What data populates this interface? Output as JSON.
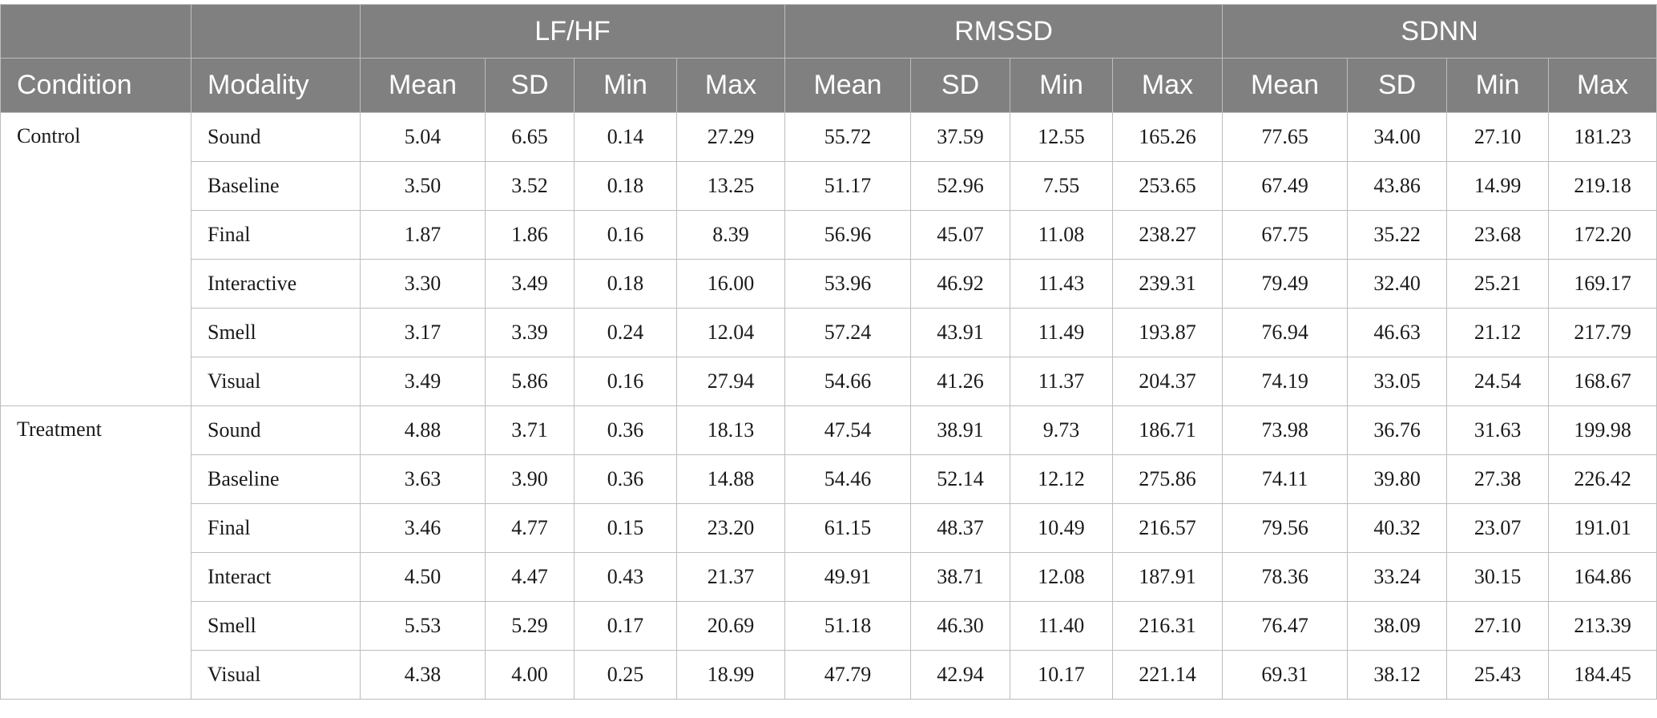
{
  "table": {
    "groups": [
      {
        "label": ""
      },
      {
        "label": ""
      },
      {
        "label": "LF/HF"
      },
      {
        "label": "RMSSD"
      },
      {
        "label": "SDNN"
      }
    ],
    "columns": [
      "Condition",
      "Modality",
      "Mean",
      "SD",
      "Min",
      "Max",
      "Mean",
      "SD",
      "Min",
      "Max",
      "Mean",
      "SD",
      "Min",
      "Max"
    ],
    "conditions": [
      {
        "name": "Control",
        "rows": [
          {
            "modality": "Sound",
            "values": [
              "5.04",
              "6.65",
              "0.14",
              "27.29",
              "55.72",
              "37.59",
              "12.55",
              "165.26",
              "77.65",
              "34.00",
              "27.10",
              "181.23"
            ]
          },
          {
            "modality": "Baseline",
            "values": [
              "3.50",
              "3.52",
              "0.18",
              "13.25",
              "51.17",
              "52.96",
              "7.55",
              "253.65",
              "67.49",
              "43.86",
              "14.99",
              "219.18"
            ]
          },
          {
            "modality": "Final",
            "values": [
              "1.87",
              "1.86",
              "0.16",
              "8.39",
              "56.96",
              "45.07",
              "11.08",
              "238.27",
              "67.75",
              "35.22",
              "23.68",
              "172.20"
            ]
          },
          {
            "modality": "Interactive",
            "values": [
              "3.30",
              "3.49",
              "0.18",
              "16.00",
              "53.96",
              "46.92",
              "11.43",
              "239.31",
              "79.49",
              "32.40",
              "25.21",
              "169.17"
            ]
          },
          {
            "modality": "Smell",
            "values": [
              "3.17",
              "3.39",
              "0.24",
              "12.04",
              "57.24",
              "43.91",
              "11.49",
              "193.87",
              "76.94",
              "46.63",
              "21.12",
              "217.79"
            ]
          },
          {
            "modality": "Visual",
            "values": [
              "3.49",
              "5.86",
              "0.16",
              "27.94",
              "54.66",
              "41.26",
              "11.37",
              "204.37",
              "74.19",
              "33.05",
              "24.54",
              "168.67"
            ]
          }
        ]
      },
      {
        "name": "Treatment",
        "rows": [
          {
            "modality": "Sound",
            "values": [
              "4.88",
              "3.71",
              "0.36",
              "18.13",
              "47.54",
              "38.91",
              "9.73",
              "186.71",
              "73.98",
              "36.76",
              "31.63",
              "199.98"
            ]
          },
          {
            "modality": "Baseline",
            "values": [
              "3.63",
              "3.90",
              "0.36",
              "14.88",
              "54.46",
              "52.14",
              "12.12",
              "275.86",
              "74.11",
              "39.80",
              "27.38",
              "226.42"
            ]
          },
          {
            "modality": "Final",
            "values": [
              "3.46",
              "4.77",
              "0.15",
              "23.20",
              "61.15",
              "48.37",
              "10.49",
              "216.57",
              "79.56",
              "40.32",
              "23.07",
              "191.01"
            ]
          },
          {
            "modality": "Interact",
            "values": [
              "4.50",
              "4.47",
              "0.43",
              "21.37",
              "49.91",
              "38.71",
              "12.08",
              "187.91",
              "78.36",
              "33.24",
              "30.15",
              "164.86"
            ]
          },
          {
            "modality": "Smell",
            "values": [
              "5.53",
              "5.29",
              "0.17",
              "20.69",
              "51.18",
              "46.30",
              "11.40",
              "216.31",
              "76.47",
              "38.09",
              "27.10",
              "213.39"
            ]
          },
          {
            "modality": "Visual",
            "values": [
              "4.38",
              "4.00",
              "0.25",
              "18.99",
              "47.79",
              "42.94",
              "10.17",
              "221.14",
              "69.31",
              "38.12",
              "25.43",
              "184.45"
            ]
          }
        ]
      }
    ]
  }
}
